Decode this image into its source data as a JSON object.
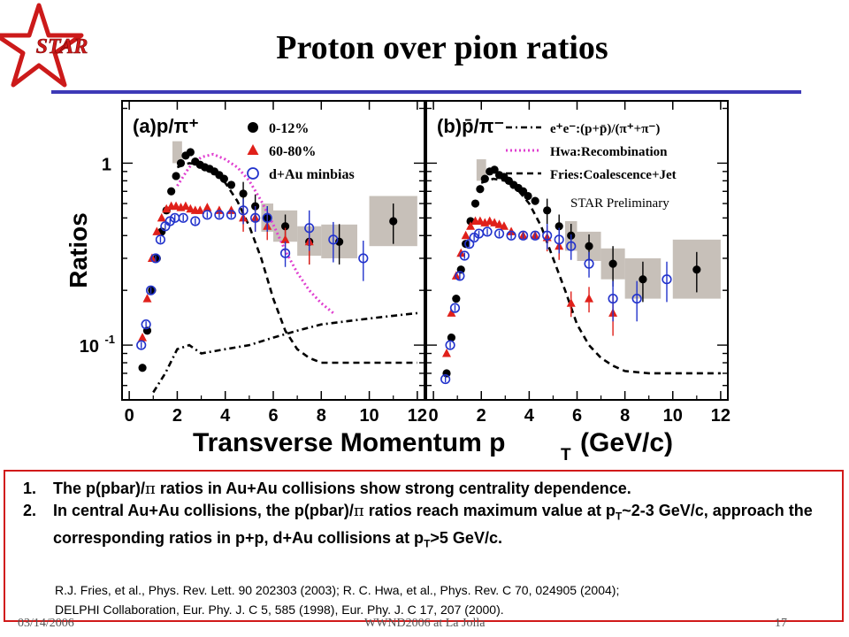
{
  "logo": {
    "text": "STAR",
    "icon": "star-icon",
    "color": "#cc1a1a"
  },
  "title": "Proton over pion ratios",
  "accent_color": "#3d3ab7",
  "chart_data": {
    "type": "scatter",
    "xlabel": "Transverse Momentum p",
    "xlabel_sub": "T",
    "xlabel_unit": "(GeV/c)",
    "ylabel": "Ratios",
    "yscale": "log",
    "ylim": [
      0.05,
      2.2
    ],
    "xlim": [
      -0.3,
      12.3
    ],
    "x_ticks": [
      "0",
      "2",
      "4",
      "6",
      "8",
      "10",
      "12"
    ],
    "y_ticks": [
      {
        "value": 1,
        "label": "1"
      },
      {
        "value": 0.1,
        "label": "10",
        "exp": "-1"
      }
    ],
    "watermark": "STAR Preliminary",
    "panels": [
      {
        "title": "(a)p/π⁺",
        "legend": [
          {
            "label": "0-12%",
            "marker": "circle-filled",
            "color": "#000000"
          },
          {
            "label": "60-80%",
            "marker": "triangle-filled",
            "color": "#e0201a"
          },
          {
            "label": "d+Au minbias",
            "marker": "circle-open",
            "color": "#2233cc"
          }
        ],
        "series": [
          {
            "name": "0-12%",
            "marker": "circle-filled",
            "color": "#000000",
            "x": [
              0.55,
              0.75,
              0.95,
              1.15,
              1.35,
              1.55,
              1.75,
              1.95,
              2.15,
              2.35,
              2.55,
              2.75,
              2.95,
              3.15,
              3.35,
              3.55,
              3.75,
              3.95,
              4.25,
              4.75,
              5.25,
              5.75,
              6.5,
              7.5,
              8.75,
              11
            ],
            "y": [
              0.075,
              0.12,
              0.2,
              0.3,
              0.42,
              0.55,
              0.7,
              0.85,
              1.0,
              1.1,
              1.15,
              1.02,
              0.98,
              0.95,
              0.93,
              0.9,
              0.86,
              0.82,
              0.76,
              0.68,
              0.58,
              0.5,
              0.45,
              0.37,
              0.37,
              0.48
            ]
          },
          {
            "name": "60-80%",
            "marker": "triangle-filled",
            "color": "#e0201a",
            "x": [
              0.55,
              0.75,
              0.95,
              1.15,
              1.35,
              1.55,
              1.75,
              1.95,
              2.15,
              2.35,
              2.55,
              2.75,
              2.95,
              3.25,
              3.75,
              4.25,
              4.75,
              5.25,
              5.75,
              6.5,
              7.5
            ],
            "y": [
              0.11,
              0.18,
              0.3,
              0.42,
              0.5,
              0.56,
              0.58,
              0.58,
              0.57,
              0.58,
              0.56,
              0.55,
              0.55,
              0.57,
              0.55,
              0.55,
              0.5,
              0.5,
              0.45,
              0.38,
              0.37
            ]
          },
          {
            "name": "d+Au minbias",
            "marker": "circle-open",
            "color": "#2233cc",
            "x": [
              0.5,
              0.7,
              0.9,
              1.1,
              1.3,
              1.5,
              1.7,
              1.9,
              2.25,
              2.75,
              3.25,
              3.75,
              4.25,
              4.75,
              5.25,
              5.75,
              6.5,
              7.5,
              8.5,
              9.75
            ],
            "y": [
              0.1,
              0.13,
              0.2,
              0.3,
              0.38,
              0.45,
              0.48,
              0.5,
              0.5,
              0.48,
              0.52,
              0.52,
              0.52,
              0.55,
              0.5,
              0.5,
              0.32,
              0.44,
              0.38,
              0.3
            ]
          }
        ],
        "curves": [
          {
            "name": "Hwa:Recombination",
            "style": "dotted",
            "color": "#e040d0",
            "x": [
              2.0,
              2.5,
              3.0,
              3.5,
              4.0,
              4.5,
              5.0,
              5.5,
              6.0,
              6.5,
              7.0,
              7.5,
              8.0,
              8.5
            ],
            "y": [
              0.75,
              0.95,
              1.08,
              1.12,
              1.05,
              0.95,
              0.8,
              0.62,
              0.46,
              0.33,
              0.25,
              0.2,
              0.17,
              0.15
            ]
          },
          {
            "name": "Fries:Coalescence+Jet",
            "style": "dashed",
            "color": "#000000",
            "x": [
              2.0,
              2.5,
              3.0,
              3.5,
              4.0,
              4.5,
              5.0,
              5.5,
              6.0,
              6.5,
              7.0,
              7.5,
              8.0,
              9.0,
              10.0,
              11.0,
              12.0
            ],
            "y": [
              0.95,
              1.0,
              0.98,
              0.9,
              0.78,
              0.62,
              0.45,
              0.3,
              0.18,
              0.12,
              0.095,
              0.085,
              0.08,
              0.08,
              0.08,
              0.08,
              0.08
            ]
          },
          {
            "name": "e⁺e⁻:(p+p̄)/(π⁺+π⁻)",
            "style": "dashdot",
            "color": "#000000",
            "x": [
              1.0,
              1.5,
              2.0,
              2.5,
              3.0,
              4.0,
              5.0,
              6.0,
              7.0,
              8.0,
              9.0,
              10.0,
              11.0,
              12.0
            ],
            "y": [
              0.055,
              0.07,
              0.095,
              0.1,
              0.09,
              0.095,
              0.1,
              0.11,
              0.12,
              0.13,
              0.135,
              0.14,
              0.145,
              0.15
            ]
          }
        ],
        "syst_boxes": [
          {
            "x": 2.0,
            "dx": 0.4,
            "y": 1.15,
            "lo": 1.0,
            "hi": 1.32
          },
          {
            "x": 5.75,
            "dx": 0.5,
            "y": 0.5,
            "lo": 0.42,
            "hi": 0.6
          },
          {
            "x": 6.5,
            "dx": 1.0,
            "y": 0.45,
            "lo": 0.37,
            "hi": 0.55
          },
          {
            "x": 7.5,
            "dx": 1.0,
            "y": 0.37,
            "lo": 0.31,
            "hi": 0.45
          },
          {
            "x": 8.75,
            "dx": 1.5,
            "y": 0.37,
            "lo": 0.3,
            "hi": 0.46
          },
          {
            "x": 11.0,
            "dx": 2.0,
            "y": 0.48,
            "lo": 0.35,
            "hi": 0.66
          }
        ]
      },
      {
        "title": "(b)p̄/π⁻",
        "legend": [
          {
            "label": "e⁺e⁻:(p+p̄)/(π⁺+π⁻)",
            "style": "dashdot",
            "color": "#000000"
          },
          {
            "label": "Hwa:Recombination",
            "style": "dotted",
            "color": "#e040d0"
          },
          {
            "label": "Fries:Coalescence+Jet",
            "style": "dashed",
            "color": "#000000"
          }
        ],
        "series": [
          {
            "name": "0-12%",
            "marker": "circle-filled",
            "color": "#000000",
            "x": [
              0.55,
              0.75,
              0.95,
              1.15,
              1.35,
              1.55,
              1.75,
              1.95,
              2.15,
              2.35,
              2.55,
              2.75,
              2.95,
              3.15,
              3.35,
              3.55,
              3.75,
              3.95,
              4.25,
              4.75,
              5.25,
              5.75,
              6.5,
              7.5,
              8.75,
              11
            ],
            "y": [
              0.07,
              0.11,
              0.18,
              0.26,
              0.36,
              0.48,
              0.6,
              0.72,
              0.82,
              0.9,
              0.92,
              0.86,
              0.84,
              0.8,
              0.76,
              0.73,
              0.7,
              0.66,
              0.62,
              0.55,
              0.45,
              0.4,
              0.35,
              0.28,
              0.23,
              0.26
            ]
          },
          {
            "name": "60-80%",
            "marker": "triangle-filled",
            "color": "#e0201a",
            "x": [
              0.55,
              0.75,
              0.95,
              1.15,
              1.35,
              1.55,
              1.75,
              1.95,
              2.15,
              2.35,
              2.55,
              2.75,
              2.95,
              3.25,
              3.75,
              4.25,
              4.75,
              5.25,
              5.75,
              6.5,
              7.5
            ],
            "y": [
              0.09,
              0.15,
              0.24,
              0.32,
              0.4,
              0.45,
              0.48,
              0.48,
              0.47,
              0.48,
              0.47,
              0.46,
              0.45,
              0.42,
              0.4,
              0.4,
              0.39,
              0.35,
              0.17,
              0.18,
              0.15
            ]
          },
          {
            "name": "d+Au minbias",
            "marker": "circle-open",
            "color": "#2233cc",
            "x": [
              0.5,
              0.7,
              0.9,
              1.1,
              1.3,
              1.5,
              1.7,
              1.9,
              2.25,
              2.75,
              3.25,
              3.75,
              4.25,
              4.75,
              5.25,
              5.75,
              6.5,
              7.5,
              8.5,
              9.75
            ],
            "y": [
              0.065,
              0.1,
              0.16,
              0.24,
              0.31,
              0.36,
              0.39,
              0.41,
              0.42,
              0.41,
              0.4,
              0.4,
              0.4,
              0.4,
              0.38,
              0.35,
              0.28,
              0.18,
              0.18,
              0.23
            ]
          }
        ],
        "curves": [
          {
            "name": "Fries:Coalescence+Jet",
            "style": "dashed",
            "color": "#000000",
            "x": [
              2.0,
              2.5,
              3.0,
              3.5,
              4.0,
              4.5,
              5.0,
              5.5,
              6.0,
              6.5,
              7.0,
              7.5,
              8.0,
              9.0,
              10.0,
              11.0,
              12.0
            ],
            "y": [
              0.78,
              0.82,
              0.8,
              0.72,
              0.6,
              0.45,
              0.3,
              0.2,
              0.13,
              0.1,
              0.085,
              0.077,
              0.072,
              0.07,
              0.07,
              0.07,
              0.07
            ]
          }
        ],
        "syst_boxes": [
          {
            "x": 2.0,
            "dx": 0.4,
            "y": 0.92,
            "lo": 0.8,
            "hi": 1.05
          },
          {
            "x": 5.75,
            "dx": 0.5,
            "y": 0.4,
            "lo": 0.33,
            "hi": 0.48
          },
          {
            "x": 6.5,
            "dx": 1.0,
            "y": 0.35,
            "lo": 0.29,
            "hi": 0.42
          },
          {
            "x": 7.5,
            "dx": 1.0,
            "y": 0.28,
            "lo": 0.23,
            "hi": 0.34
          },
          {
            "x": 8.75,
            "dx": 1.5,
            "y": 0.23,
            "lo": 0.18,
            "hi": 0.3
          },
          {
            "x": 11.0,
            "dx": 2.0,
            "y": 0.26,
            "lo": 0.18,
            "hi": 0.38
          }
        ]
      }
    ]
  },
  "notes": [
    {
      "num": "1.",
      "parts": [
        "The p(pbar)/",
        "π",
        " ratios in Au+Au collisions show strong centrality dependence."
      ]
    },
    {
      "num": "2.",
      "parts": [
        "In central Au+Au collisions, the p(pbar)/",
        "π",
        " ratios reach maximum value at p",
        "T",
        "~2-3 GeV/c, approach the corresponding ratios in p+p, d+Au collisions at p",
        "T",
        ">5 GeV/c."
      ]
    }
  ],
  "references": [
    "R.J. Fries, et al., Phys. Rev. Lett. 90 202303 (2003); R. C. Hwa, et al., Phys. Rev. C 70, 024905 (2004);",
    "DELPHI Collaboration, Eur. Phy. J. C 5, 585 (1998), Eur. Phy. J. C 17, 207 (2000)."
  ],
  "footer": {
    "date": "03/14/2006",
    "event": "WWND2006 at La Jolla",
    "page": "17"
  }
}
